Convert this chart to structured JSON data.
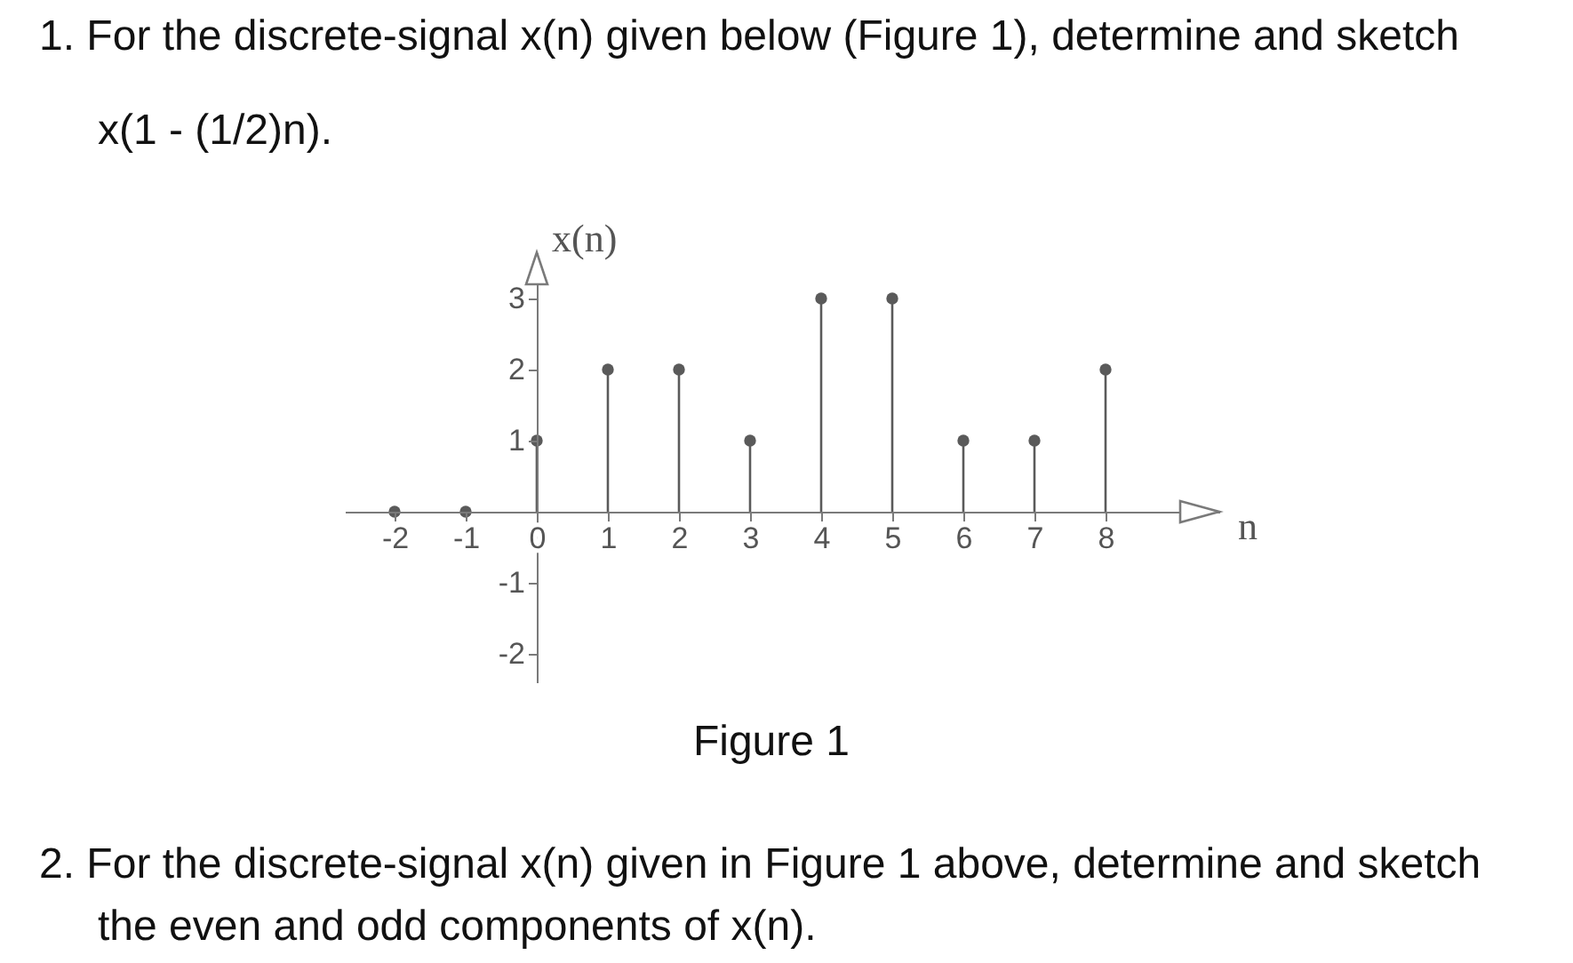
{
  "chart_data": {
    "type": "lollipop",
    "title": "1. For the discrete-signal x(n) given below (Figure 1), determine and sketch x(1 - (1/2)n).",
    "xlabel": "n",
    "ylabel": "x(n)",
    "annotations": [
      "Figure 1",
      "2. For the discrete-signal x(n) given in Figure 1 above, determine and sketch the even and odd components of x(n)."
    ],
    "x": [
      -2,
      -1,
      0,
      1,
      2,
      3,
      4,
      5,
      6,
      7,
      8
    ],
    "values": [
      0,
      0,
      1,
      2,
      2,
      1,
      3,
      3,
      1,
      1,
      2
    ],
    "color": "#5a5a5a",
    "marker": "circle",
    "xlim": [
      -2.7,
      9.6
    ],
    "ylim": [
      -2.4,
      3.65
    ],
    "xticks": [
      -2,
      -1,
      0,
      1,
      2,
      3,
      4,
      5,
      6,
      7,
      8
    ],
    "yticks": [
      -2,
      -1,
      1,
      2,
      3
    ]
  }
}
